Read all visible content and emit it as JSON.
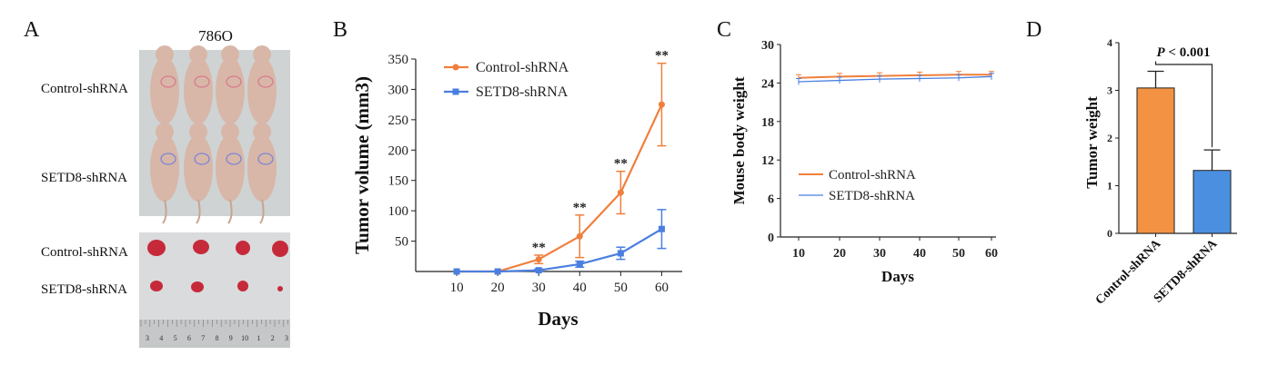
{
  "panels": {
    "A": {
      "letter": "A",
      "title": "786O",
      "mice_rows": [
        "Control-shRNA",
        "SETD8-shRNA"
      ],
      "tumor_rows": [
        "Control-shRNA",
        "SETD8-shRNA"
      ],
      "ruler_numbers": [
        "3",
        "4",
        "5",
        "6",
        "7",
        "8",
        "9",
        "10",
        "1",
        "2",
        "3"
      ],
      "colors": {
        "photo_bg": "#cfd3d2",
        "mouse": "#d8b7a8",
        "tumor": "#c62a3a"
      }
    },
    "B": {
      "letter": "B"
    },
    "C": {
      "letter": "C"
    },
    "D": {
      "letter": "D"
    }
  },
  "chart_data": [
    {
      "id": "B",
      "type": "line",
      "xlabel": "Days",
      "ylabel": "Tumor volume (mm3)",
      "x": [
        10,
        20,
        30,
        40,
        50,
        60
      ],
      "xlim": [
        0,
        65
      ],
      "ylim": [
        0,
        350
      ],
      "yticks": [
        50,
        100,
        150,
        200,
        250,
        300,
        350
      ],
      "legend_position": "top-left",
      "series": [
        {
          "name": "Control-shRNA",
          "color": "#f07f3c",
          "marker": "circle",
          "values": [
            0,
            0,
            20,
            58,
            130,
            275
          ],
          "errors": [
            0,
            0,
            7,
            35,
            35,
            68
          ]
        },
        {
          "name": "SETD8-shRNA",
          "color": "#4a7fe0",
          "marker": "square",
          "values": [
            0,
            0,
            2,
            12,
            30,
            70
          ],
          "errors": [
            0,
            0,
            2,
            5,
            10,
            32
          ]
        }
      ],
      "significance": [
        "",
        "",
        "**",
        "**",
        "**",
        "**"
      ]
    },
    {
      "id": "C",
      "type": "line",
      "xlabel": "Days",
      "ylabel": "Mouse body weight",
      "x": [
        10,
        20,
        30,
        40,
        50,
        60
      ],
      "ylim": [
        0,
        30
      ],
      "yticks": [
        0,
        6,
        12,
        18,
        24,
        30
      ],
      "legend_position": "bottom-left",
      "series": [
        {
          "name": "Control-shRNA",
          "color": "#f07f3c",
          "values": [
            24.8,
            25.0,
            25.1,
            25.2,
            25.3,
            25.3
          ],
          "error": 0.5
        },
        {
          "name": "SETD8-shRNA",
          "color": "#4a7fe0",
          "values": [
            24.2,
            24.4,
            24.6,
            24.7,
            24.8,
            25.0
          ],
          "error": 0.5
        }
      ]
    },
    {
      "id": "D",
      "type": "bar",
      "ylabel": "Tumor weight",
      "categories": [
        "Control-shRNA",
        "SETD8-shRNA"
      ],
      "values": [
        3.05,
        1.32
      ],
      "errors": [
        0.35,
        0.43
      ],
      "colors": [
        "#f39242",
        "#4a8fe0"
      ],
      "ylim": [
        0,
        4
      ],
      "yticks": [
        0,
        1,
        2,
        3,
        4
      ],
      "annotation": "P < 0.001"
    }
  ]
}
